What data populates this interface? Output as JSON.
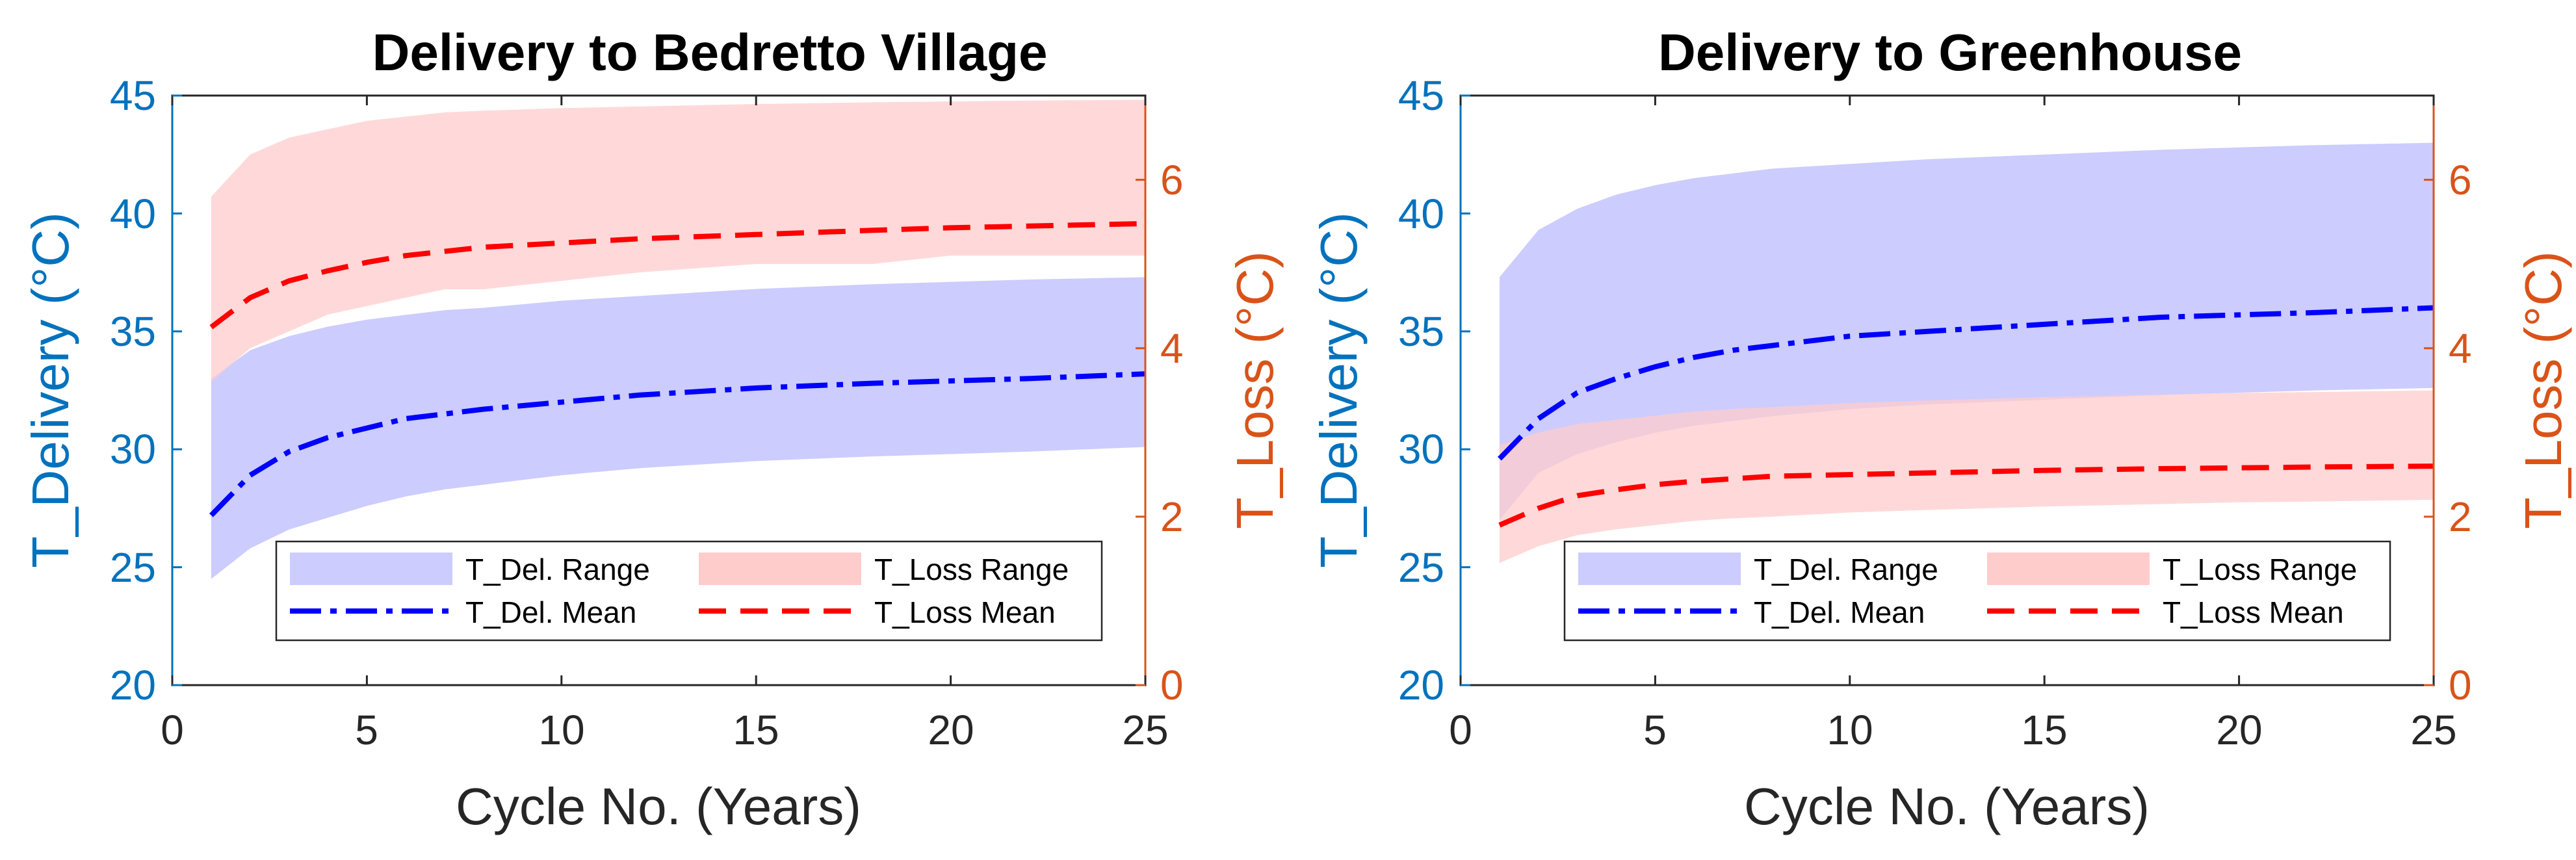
{
  "chart_data": [
    {
      "type": "area",
      "title": "Delivery to Bedretto Village",
      "xlabel": "Cycle No. (Years)",
      "ylabel_left": "T_Delivery (°C)",
      "ylabel_right": "T_Loss (°C)",
      "xlim": [
        0,
        25
      ],
      "ylim_left": [
        20,
        45
      ],
      "ylim_right": [
        0,
        7
      ],
      "xticks": [
        "0",
        "5",
        "10",
        "15",
        "20",
        "25"
      ],
      "yticks_left": [
        "20",
        "25",
        "30",
        "35",
        "40",
        "45"
      ],
      "yticks_right": [
        "0",
        "2",
        "4",
        "6"
      ],
      "grid": false,
      "x": [
        1,
        2,
        3,
        4,
        5,
        6,
        7,
        8,
        10,
        12,
        15,
        18,
        20,
        22,
        25
      ],
      "series": [
        {
          "name": "T_Del. Range",
          "axis": "left",
          "kind": "band",
          "lower": [
            24.5,
            25.8,
            26.6,
            27.1,
            27.6,
            28.0,
            28.3,
            28.5,
            28.9,
            29.2,
            29.5,
            29.7,
            29.8,
            29.9,
            30.1
          ],
          "upper": [
            33.0,
            34.2,
            34.8,
            35.2,
            35.5,
            35.7,
            35.9,
            36.0,
            36.3,
            36.5,
            36.8,
            37.0,
            37.1,
            37.2,
            37.3
          ]
        },
        {
          "name": "T_Loss Range",
          "axis": "right",
          "kind": "band",
          "lower": [
            3.6,
            4.0,
            4.2,
            4.4,
            4.5,
            4.6,
            4.7,
            4.7,
            4.8,
            4.9,
            5.0,
            5.0,
            5.1,
            5.1,
            5.1
          ],
          "upper": [
            5.8,
            6.3,
            6.5,
            6.6,
            6.7,
            6.75,
            6.8,
            6.82,
            6.85,
            6.87,
            6.9,
            6.92,
            6.93,
            6.94,
            6.95
          ]
        },
        {
          "name": "T_Del. Mean",
          "axis": "left",
          "kind": "line",
          "dash": "dashdot",
          "values": [
            27.2,
            28.9,
            29.9,
            30.5,
            30.9,
            31.3,
            31.5,
            31.7,
            32.0,
            32.3,
            32.6,
            32.8,
            32.9,
            33.0,
            33.2
          ]
        },
        {
          "name": "T_Loss Mean",
          "axis": "right",
          "kind": "line",
          "dash": "dashed",
          "values": [
            4.25,
            4.6,
            4.8,
            4.92,
            5.02,
            5.1,
            5.15,
            5.2,
            5.25,
            5.3,
            5.35,
            5.4,
            5.43,
            5.45,
            5.48
          ]
        }
      ],
      "legend": {
        "location": "bottom",
        "entries": [
          "T_Del. Range",
          "T_Loss Range",
          "T_Del. Mean",
          "T_Loss Mean"
        ]
      }
    },
    {
      "type": "area",
      "title": "Delivery to Greenhouse",
      "xlabel": "Cycle No. (Years)",
      "ylabel_left": "T_Delivery (°C)",
      "ylabel_right": "T_Loss (°C)",
      "xlim": [
        0,
        25
      ],
      "ylim_left": [
        20,
        45
      ],
      "ylim_right": [
        0,
        7
      ],
      "xticks": [
        "0",
        "5",
        "10",
        "15",
        "20",
        "25"
      ],
      "yticks_left": [
        "20",
        "25",
        "30",
        "35",
        "40",
        "45"
      ],
      "yticks_right": [
        "0",
        "2",
        "4",
        "6"
      ],
      "grid": false,
      "x": [
        1,
        2,
        3,
        4,
        5,
        6,
        7,
        8,
        10,
        12,
        15,
        18,
        20,
        22,
        25
      ],
      "series": [
        {
          "name": "T_Del. Range",
          "axis": "left",
          "kind": "band",
          "lower": [
            27.0,
            29.0,
            29.8,
            30.3,
            30.7,
            31.0,
            31.2,
            31.4,
            31.7,
            31.9,
            32.1,
            32.3,
            32.4,
            32.5,
            32.6
          ],
          "upper": [
            37.3,
            39.3,
            40.2,
            40.8,
            41.2,
            41.5,
            41.7,
            41.9,
            42.1,
            42.3,
            42.5,
            42.7,
            42.8,
            42.9,
            43.0
          ]
        },
        {
          "name": "T_Loss Range",
          "axis": "right",
          "kind": "band",
          "lower": [
            1.45,
            1.65,
            1.78,
            1.85,
            1.9,
            1.95,
            1.98,
            2.0,
            2.05,
            2.08,
            2.12,
            2.15,
            2.17,
            2.18,
            2.2
          ],
          "upper": [
            2.85,
            3.0,
            3.1,
            3.15,
            3.2,
            3.25,
            3.28,
            3.3,
            3.35,
            3.38,
            3.42,
            3.45,
            3.47,
            3.48,
            3.5
          ]
        },
        {
          "name": "T_Del. Mean",
          "axis": "left",
          "kind": "line",
          "dash": "dashdot",
          "values": [
            29.6,
            31.3,
            32.4,
            33.0,
            33.5,
            33.9,
            34.2,
            34.4,
            34.8,
            35.0,
            35.3,
            35.6,
            35.7,
            35.8,
            36.0
          ]
        },
        {
          "name": "T_Loss Mean",
          "axis": "right",
          "kind": "line",
          "dash": "dashed",
          "values": [
            1.9,
            2.1,
            2.25,
            2.32,
            2.38,
            2.42,
            2.45,
            2.48,
            2.5,
            2.52,
            2.55,
            2.57,
            2.58,
            2.59,
            2.6
          ]
        }
      ],
      "legend": {
        "location": "bottom",
        "entries": [
          "T_Del. Range",
          "T_Loss Range",
          "T_Del. Mean",
          "T_Loss Mean"
        ]
      }
    }
  ],
  "colors": {
    "del_band": "#CCCCFF",
    "loss_band": "#FFCCCC",
    "del_line": "#0000FF",
    "loss_line": "#FF0000",
    "left_axis": "#0072BD",
    "right_axis": "#D95319",
    "axis_black": "#262626"
  }
}
